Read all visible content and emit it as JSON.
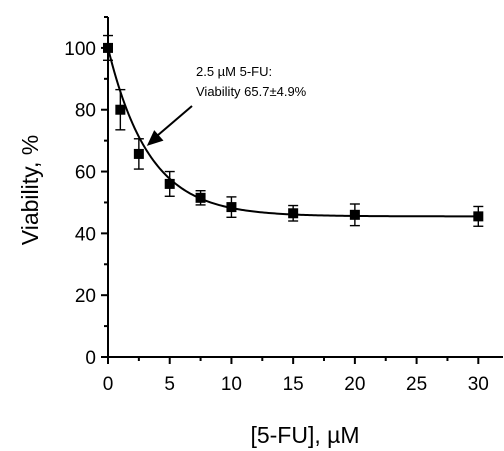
{
  "chart_data": {
    "type": "scatter",
    "xlabel": "[5-FU], µM",
    "ylabel": "Viability, %",
    "xlim": [
      0,
      32
    ],
    "ylim": [
      0,
      110
    ],
    "x_ticks": [
      0,
      5,
      10,
      15,
      20,
      25,
      30
    ],
    "y_ticks": [
      0,
      20,
      40,
      60,
      80,
      100
    ],
    "grid": false,
    "series": [
      {
        "points": [
          {
            "x": 0,
            "y": 100,
            "err": 4.0
          },
          {
            "x": 1,
            "y": 80,
            "err": 6.5
          },
          {
            "x": 2.5,
            "y": 65.7,
            "err": 4.9
          },
          {
            "x": 5,
            "y": 56,
            "err": 4.0
          },
          {
            "x": 7.5,
            "y": 51.5,
            "err": 2.3
          },
          {
            "x": 10,
            "y": 48.5,
            "err": 3.3
          },
          {
            "x": 15,
            "y": 46.5,
            "err": 2.5
          },
          {
            "x": 20,
            "y": 46,
            "err": 3.5
          },
          {
            "x": 30,
            "y": 45.5,
            "err": 3.2
          }
        ]
      }
    ],
    "fit_curve": {
      "model": "exponential decay",
      "plateau": 45.5,
      "span": 54.5,
      "rate": 0.3
    },
    "annotation": {
      "line1": "2.5 µM 5-FU:",
      "line2": "Viability 65.7±4.9%",
      "points_to": {
        "x": 2.5,
        "y": 65.7
      }
    }
  }
}
